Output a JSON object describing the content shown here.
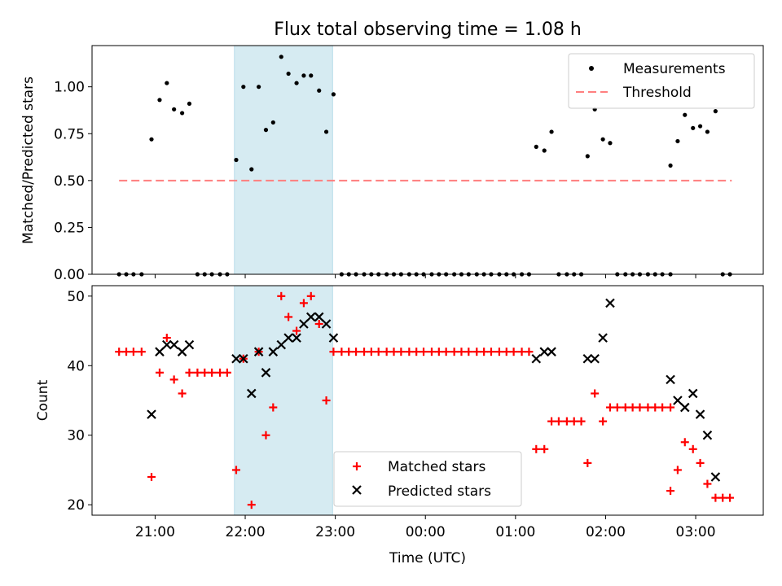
{
  "chart_data": [
    {
      "type": "scatter",
      "title": "Flux total observing time = 1.08 h",
      "xlabel": "",
      "ylabel": "Matched/Predicted stars",
      "x_unit": "hours of UTC (values above 24 fall after midnight)",
      "xlim": [
        20.3,
        27.75
      ],
      "ylim": [
        0,
        1.22
      ],
      "yticks": [
        "0.00",
        "0.25",
        "0.50",
        "0.75",
        "1.00"
      ],
      "highlight_span": [
        21.88,
        22.97
      ],
      "legend_position": "upper right",
      "legend": [
        "Measurements",
        "Threshold"
      ],
      "threshold": {
        "name": "Threshold",
        "y": 0.5,
        "x_range": [
          20.6,
          27.4
        ],
        "color": "#ff7f7f"
      },
      "measurements": [
        [
          20.6,
          0
        ],
        [
          20.68,
          0
        ],
        [
          20.76,
          0
        ],
        [
          20.85,
          0
        ],
        [
          20.96,
          0.72
        ],
        [
          21.05,
          0.93
        ],
        [
          21.13,
          1.02
        ],
        [
          21.21,
          0.88
        ],
        [
          21.3,
          0.86
        ],
        [
          21.38,
          0.91
        ],
        [
          21.47,
          0
        ],
        [
          21.55,
          0
        ],
        [
          21.63,
          0
        ],
        [
          21.72,
          0
        ],
        [
          21.8,
          0
        ],
        [
          21.9,
          0.61
        ],
        [
          21.98,
          1.0
        ],
        [
          22.07,
          0.56
        ],
        [
          22.15,
          1.0
        ],
        [
          22.23,
          0.77
        ],
        [
          22.31,
          0.81
        ],
        [
          22.4,
          1.16
        ],
        [
          22.48,
          1.07
        ],
        [
          22.57,
          1.02
        ],
        [
          22.65,
          1.06
        ],
        [
          22.73,
          1.06
        ],
        [
          22.82,
          0.98
        ],
        [
          22.9,
          0.76
        ],
        [
          22.98,
          0.96
        ],
        [
          23.07,
          0
        ],
        [
          23.15,
          0
        ],
        [
          23.23,
          0
        ],
        [
          23.32,
          0
        ],
        [
          23.4,
          0
        ],
        [
          23.48,
          0
        ],
        [
          23.57,
          0
        ],
        [
          23.65,
          0
        ],
        [
          23.73,
          0
        ],
        [
          23.82,
          0
        ],
        [
          23.9,
          0
        ],
        [
          23.98,
          0
        ],
        [
          24.07,
          0
        ],
        [
          24.15,
          0
        ],
        [
          24.23,
          0
        ],
        [
          24.32,
          0
        ],
        [
          24.4,
          0
        ],
        [
          24.48,
          0
        ],
        [
          24.57,
          0
        ],
        [
          24.65,
          0
        ],
        [
          24.73,
          0
        ],
        [
          24.82,
          0
        ],
        [
          24.9,
          0
        ],
        [
          24.98,
          0
        ],
        [
          25.07,
          0
        ],
        [
          25.15,
          0
        ],
        [
          25.23,
          0.68
        ],
        [
          25.32,
          0.66
        ],
        [
          25.4,
          0.76
        ],
        [
          25.48,
          0
        ],
        [
          25.57,
          0
        ],
        [
          25.65,
          0
        ],
        [
          25.73,
          0
        ],
        [
          25.8,
          0.63
        ],
        [
          25.88,
          0.88
        ],
        [
          25.97,
          0.72
        ],
        [
          26.05,
          0.7
        ],
        [
          26.13,
          0
        ],
        [
          26.22,
          0
        ],
        [
          26.3,
          0
        ],
        [
          26.38,
          0
        ],
        [
          26.47,
          0
        ],
        [
          26.55,
          0
        ],
        [
          26.63,
          0
        ],
        [
          26.72,
          0
        ],
        [
          26.72,
          0.58
        ],
        [
          26.8,
          0.71
        ],
        [
          26.88,
          0.85
        ],
        [
          26.97,
          0.78
        ],
        [
          27.05,
          0.79
        ],
        [
          27.13,
          0.76
        ],
        [
          27.22,
          0.87
        ],
        [
          27.3,
          0
        ],
        [
          27.38,
          0
        ]
      ]
    },
    {
      "type": "scatter",
      "title": "",
      "xlabel": "Time (UTC)",
      "ylabel": "Count",
      "x_unit": "hours of UTC (values above 24 fall after midnight)",
      "xlim": [
        20.3,
        27.75
      ],
      "ylim": [
        18.5,
        51.5
      ],
      "yticks": [
        "20",
        "30",
        "40",
        "50"
      ],
      "xticks": [
        {
          "x": 21,
          "label": "21:00"
        },
        {
          "x": 22,
          "label": "22:00"
        },
        {
          "x": 23,
          "label": "23:00"
        },
        {
          "x": 24,
          "label": "00:00"
        },
        {
          "x": 25,
          "label": "01:00"
        },
        {
          "x": 26,
          "label": "02:00"
        },
        {
          "x": 27,
          "label": "03:00"
        }
      ],
      "highlight_span": [
        21.88,
        22.97
      ],
      "legend_position": "lower center",
      "legend": [
        "Matched stars",
        "Predicted stars"
      ],
      "series": [
        {
          "name": "Matched stars",
          "marker": "+",
          "color": "#ff0000",
          "points": [
            [
              20.6,
              42
            ],
            [
              20.68,
              42
            ],
            [
              20.76,
              42
            ],
            [
              20.85,
              42
            ],
            [
              20.96,
              24
            ],
            [
              21.05,
              39
            ],
            [
              21.13,
              44
            ],
            [
              21.21,
              38
            ],
            [
              21.3,
              36
            ],
            [
              21.38,
              39
            ],
            [
              21.47,
              39
            ],
            [
              21.55,
              39
            ],
            [
              21.63,
              39
            ],
            [
              21.72,
              39
            ],
            [
              21.8,
              39
            ],
            [
              21.9,
              25
            ],
            [
              21.98,
              41
            ],
            [
              22.07,
              20
            ],
            [
              22.15,
              42
            ],
            [
              22.23,
              30
            ],
            [
              22.31,
              34
            ],
            [
              22.4,
              50
            ],
            [
              22.48,
              47
            ],
            [
              22.57,
              45
            ],
            [
              22.65,
              49
            ],
            [
              22.73,
              50
            ],
            [
              22.82,
              46
            ],
            [
              22.9,
              35
            ],
            [
              22.98,
              42
            ],
            [
              23.07,
              42
            ],
            [
              23.15,
              42
            ],
            [
              23.23,
              42
            ],
            [
              23.32,
              42
            ],
            [
              23.4,
              42
            ],
            [
              23.48,
              42
            ],
            [
              23.57,
              42
            ],
            [
              23.65,
              42
            ],
            [
              23.73,
              42
            ],
            [
              23.82,
              42
            ],
            [
              23.9,
              42
            ],
            [
              23.98,
              42
            ],
            [
              24.07,
              42
            ],
            [
              24.15,
              42
            ],
            [
              24.23,
              42
            ],
            [
              24.32,
              42
            ],
            [
              24.4,
              42
            ],
            [
              24.48,
              42
            ],
            [
              24.57,
              42
            ],
            [
              24.65,
              42
            ],
            [
              24.73,
              42
            ],
            [
              24.82,
              42
            ],
            [
              24.9,
              42
            ],
            [
              24.98,
              42
            ],
            [
              25.07,
              42
            ],
            [
              25.15,
              42
            ],
            [
              25.23,
              28
            ],
            [
              25.32,
              28
            ],
            [
              25.4,
              32
            ],
            [
              25.48,
              32
            ],
            [
              25.57,
              32
            ],
            [
              25.65,
              32
            ],
            [
              25.73,
              32
            ],
            [
              25.8,
              26
            ],
            [
              25.88,
              36
            ],
            [
              25.97,
              32
            ],
            [
              26.05,
              34
            ],
            [
              26.13,
              34
            ],
            [
              26.22,
              34
            ],
            [
              26.3,
              34
            ],
            [
              26.38,
              34
            ],
            [
              26.47,
              34
            ],
            [
              26.55,
              34
            ],
            [
              26.63,
              34
            ],
            [
              26.72,
              34
            ],
            [
              26.72,
              22
            ],
            [
              26.8,
              25
            ],
            [
              26.88,
              29
            ],
            [
              26.97,
              28
            ],
            [
              27.05,
              26
            ],
            [
              27.13,
              23
            ],
            [
              27.22,
              21
            ],
            [
              27.3,
              21
            ],
            [
              27.38,
              21
            ]
          ]
        },
        {
          "name": "Predicted stars",
          "marker": "x",
          "color": "#000000",
          "points": [
            [
              20.96,
              33
            ],
            [
              21.05,
              42
            ],
            [
              21.13,
              43
            ],
            [
              21.21,
              43
            ],
            [
              21.3,
              42
            ],
            [
              21.38,
              43
            ],
            [
              21.9,
              41
            ],
            [
              21.98,
              41
            ],
            [
              22.07,
              36
            ],
            [
              22.15,
              42
            ],
            [
              22.23,
              39
            ],
            [
              22.31,
              42
            ],
            [
              22.4,
              43
            ],
            [
              22.48,
              44
            ],
            [
              22.57,
              44
            ],
            [
              22.65,
              46
            ],
            [
              22.73,
              47
            ],
            [
              22.82,
              47
            ],
            [
              22.9,
              46
            ],
            [
              22.98,
              44
            ],
            [
              25.23,
              41
            ],
            [
              25.32,
              42
            ],
            [
              25.4,
              42
            ],
            [
              25.8,
              41
            ],
            [
              25.88,
              41
            ],
            [
              25.97,
              44
            ],
            [
              26.05,
              49
            ],
            [
              26.72,
              38
            ],
            [
              26.8,
              35
            ],
            [
              26.88,
              34
            ],
            [
              26.97,
              36
            ],
            [
              27.05,
              33
            ],
            [
              27.13,
              30
            ],
            [
              27.22,
              24
            ]
          ]
        }
      ]
    }
  ]
}
